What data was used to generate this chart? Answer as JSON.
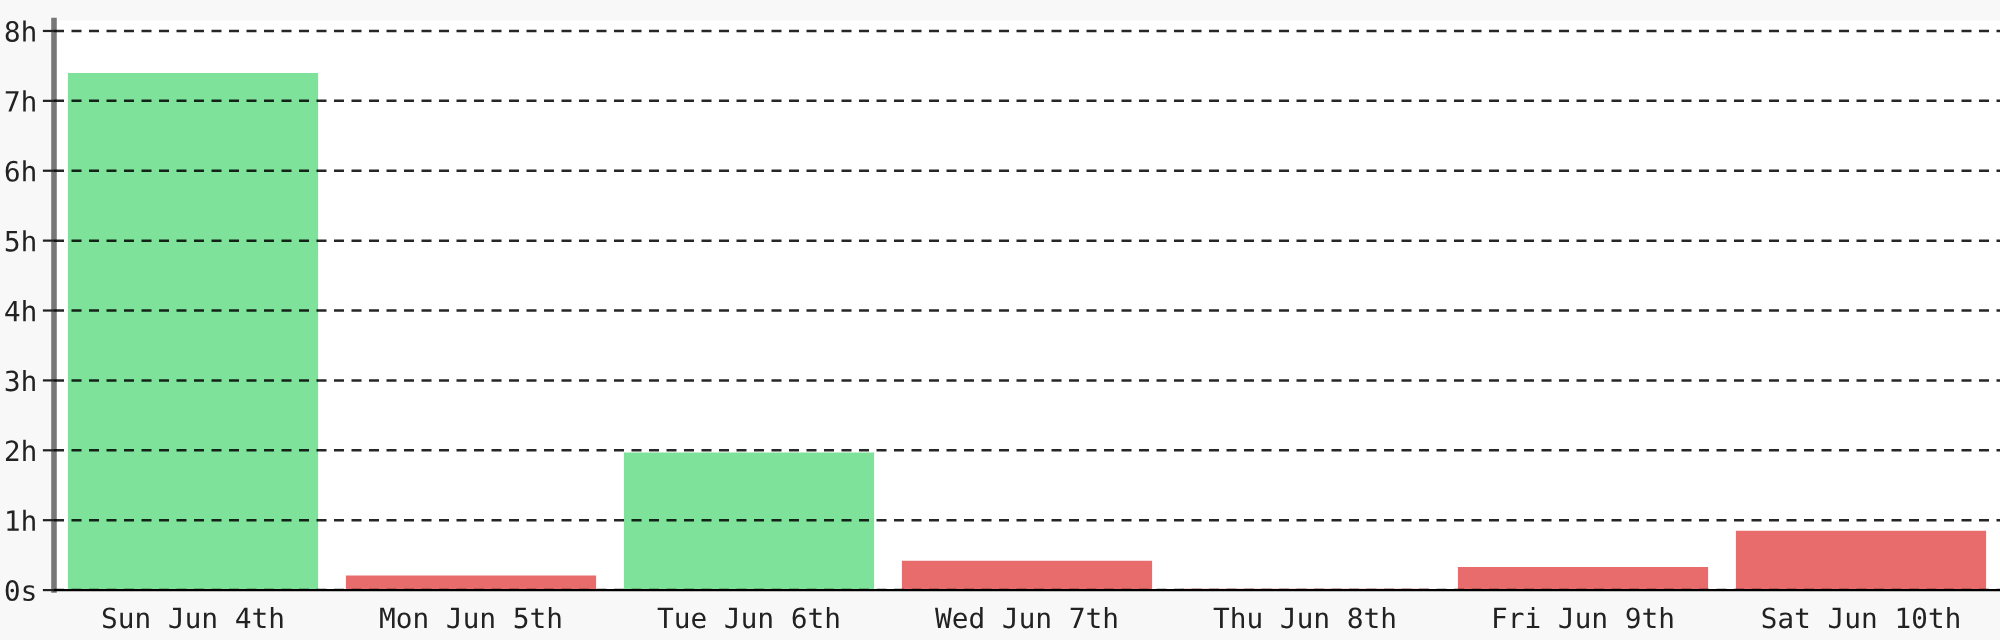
{
  "chart_data": {
    "type": "bar",
    "categories": [
      "Sun Jun 4th",
      "Mon Jun 5th",
      "Tue Jun 6th",
      "Wed Jun 7th",
      "Thu Jun 8th",
      "Fri Jun 9th",
      "Sat Jun 10th"
    ],
    "values": [
      7.38,
      0.19,
      1.95,
      0.4,
      0,
      0.31,
      0.83
    ],
    "colors": [
      "#7ee29a",
      "#e86c6c",
      "#7ee29a",
      "#e86c6c",
      "#e86c6c",
      "#e86c6c",
      "#e86c6c"
    ],
    "ylim": [
      0,
      8.15
    ],
    "yticks": [
      {
        "value": 0,
        "label": "0s"
      },
      {
        "value": 1,
        "label": "1h"
      },
      {
        "value": 2,
        "label": "2h"
      },
      {
        "value": 3,
        "label": "3h"
      },
      {
        "value": 4,
        "label": "4h"
      },
      {
        "value": 5,
        "label": "5h"
      },
      {
        "value": 6,
        "label": "6h"
      },
      {
        "value": 7,
        "label": "7h"
      },
      {
        "value": 8,
        "label": "8h"
      }
    ],
    "grid": "y"
  }
}
